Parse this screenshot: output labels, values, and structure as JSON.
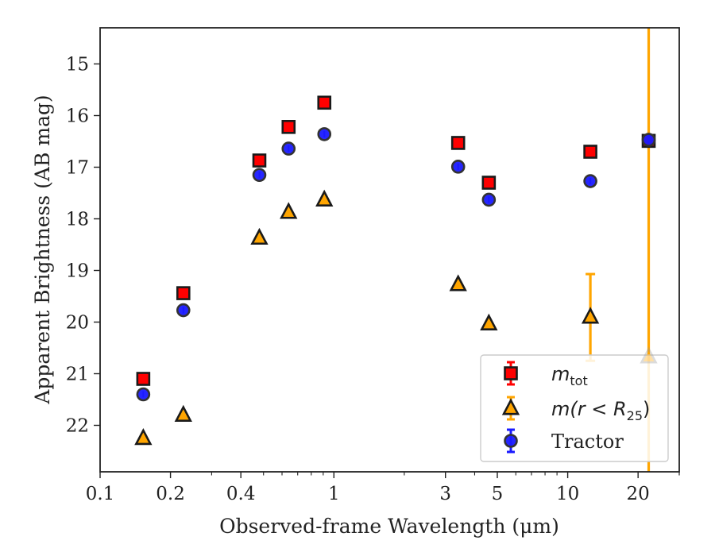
{
  "chart_data": {
    "type": "scatter",
    "xlabel": "Observed-frame Wavelength (μm)",
    "ylabel": "Apparent Brightness (AB mag)",
    "x_scale": "log",
    "xlim": [
      0.1,
      30
    ],
    "ylim": [
      22.9,
      14.3
    ],
    "y_inverted": true,
    "x_ticks": [
      {
        "value": 0.1,
        "label": "0.1"
      },
      {
        "value": 0.2,
        "label": "0.2"
      },
      {
        "value": 0.4,
        "label": "0.4"
      },
      {
        "value": 1,
        "label": "1"
      },
      {
        "value": 3,
        "label": "3"
      },
      {
        "value": 5,
        "label": "5"
      },
      {
        "value": 10,
        "label": "10"
      },
      {
        "value": 20,
        "label": "20"
      }
    ],
    "y_ticks": [
      15,
      16,
      17,
      18,
      19,
      20,
      21,
      22
    ],
    "grid": false,
    "legend_position": "lower-right",
    "series": [
      {
        "marker": "square",
        "color": "#ff0000",
        "edge_color": "#1a1a1a",
        "legend_label": "m",
        "legend_sub": "tot",
        "points": [
          {
            "x": 0.153,
            "y": 21.1
          },
          {
            "x": 0.227,
            "y": 19.44
          },
          {
            "x": 0.48,
            "y": 16.87
          },
          {
            "x": 0.64,
            "y": 16.22
          },
          {
            "x": 0.91,
            "y": 15.75
          },
          {
            "x": 3.4,
            "y": 16.53
          },
          {
            "x": 4.6,
            "y": 17.3
          },
          {
            "x": 12.5,
            "y": 16.7
          },
          {
            "x": 22.2,
            "y": 16.49
          }
        ]
      },
      {
        "marker": "triangle",
        "color": "#ffa500",
        "edge_color": "#1a1a1a",
        "legend_label": "m(r < R",
        "legend_sub": "25",
        "legend_suffix": ")",
        "points": [
          {
            "x": 0.153,
            "y": 22.25
          },
          {
            "x": 0.227,
            "y": 21.8
          },
          {
            "x": 0.48,
            "y": 18.37
          },
          {
            "x": 0.64,
            "y": 17.87
          },
          {
            "x": 0.91,
            "y": 17.63
          },
          {
            "x": 3.4,
            "y": 19.27
          },
          {
            "x": 4.6,
            "y": 20.03
          },
          {
            "x": 12.5,
            "y": 19.9,
            "err_low": 19.07,
            "err_high": 20.75
          },
          {
            "x": 22.2,
            "y": 20.67,
            "err_low": 14.3,
            "err_high": 22.9,
            "faded": true
          }
        ]
      },
      {
        "marker": "circle",
        "color": "#1a1aff",
        "edge_color": "#333333",
        "legend_label": "Tractor",
        "points": [
          {
            "x": 0.153,
            "y": 21.4
          },
          {
            "x": 0.227,
            "y": 19.77
          },
          {
            "x": 0.48,
            "y": 17.15
          },
          {
            "x": 0.64,
            "y": 16.64
          },
          {
            "x": 0.91,
            "y": 16.36
          },
          {
            "x": 3.4,
            "y": 16.99
          },
          {
            "x": 4.6,
            "y": 17.63
          },
          {
            "x": 12.5,
            "y": 17.27
          },
          {
            "x": 22.2,
            "y": 16.47
          }
        ]
      }
    ]
  }
}
